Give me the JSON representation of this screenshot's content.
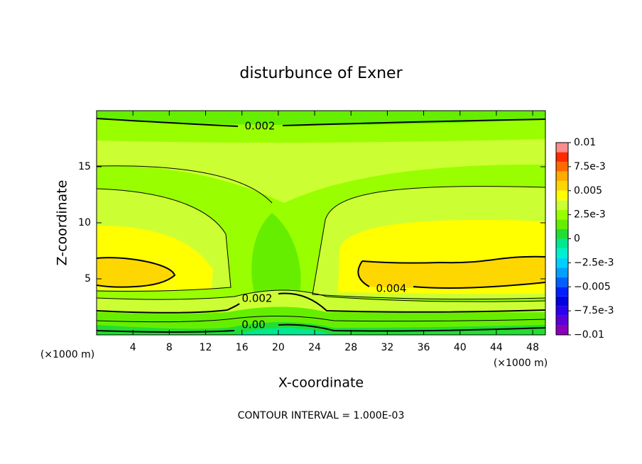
{
  "chart_data": {
    "type": "contour",
    "title": "disturbunce of Exner",
    "xlabel": "X-coordinate",
    "ylabel": "Z-coordinate",
    "y_unit": "(×1000 m)",
    "x_unit": "(×1000 m)",
    "footer": "CONTOUR INTERVAL = 1.000E-03",
    "xlim": [
      0,
      49.4
    ],
    "ylim": [
      0,
      20
    ],
    "xticks": [
      4,
      8,
      12,
      16,
      20,
      24,
      28,
      32,
      36,
      40,
      44,
      48
    ],
    "yticks": [
      5,
      10,
      15
    ],
    "contour_labels": [
      0.002,
      0.004,
      0.002,
      {
        "value": 0,
        "label": "0.00"
      }
    ],
    "colorbar": {
      "lim": [
        -0.01,
        0.01
      ],
      "levels": [
        -0.01,
        -0.009,
        -0.008,
        -0.007,
        -0.006,
        -0.005,
        -0.004,
        -0.003,
        -0.002,
        -0.001,
        0,
        0.001,
        0.002,
        0.003,
        0.004,
        0.005,
        0.006,
        0.007,
        0.008,
        0.009,
        0.01
      ],
      "colors": [
        "#8a00b8",
        "#5a00d8",
        "#2a00f0",
        "#0000e0",
        "#0020ff",
        "#0060ff",
        "#00a0ff",
        "#00d0ff",
        "#00f0d0",
        "#00e890",
        "#22dd33",
        "#66ee00",
        "#99ff00",
        "#ccff33",
        "#ffff00",
        "#ffd700",
        "#ffaa00",
        "#ff6a00",
        "#ff2a00",
        "#ff8c8c"
      ],
      "ticks": [
        0.01,
        {
          "value": 0.0075,
          "label": "7.5e-3"
        },
        0.005,
        {
          "value": 0.0025,
          "label": "2.5e-3"
        },
        0,
        {
          "value": -0.0025,
          "label": "−2.5e-3"
        },
        {
          "value": -0.005,
          "label": "−0.005"
        },
        {
          "value": -0.0075,
          "label": "−7.5e-3"
        },
        {
          "value": -0.01,
          "label": "−0.01"
        }
      ]
    }
  }
}
